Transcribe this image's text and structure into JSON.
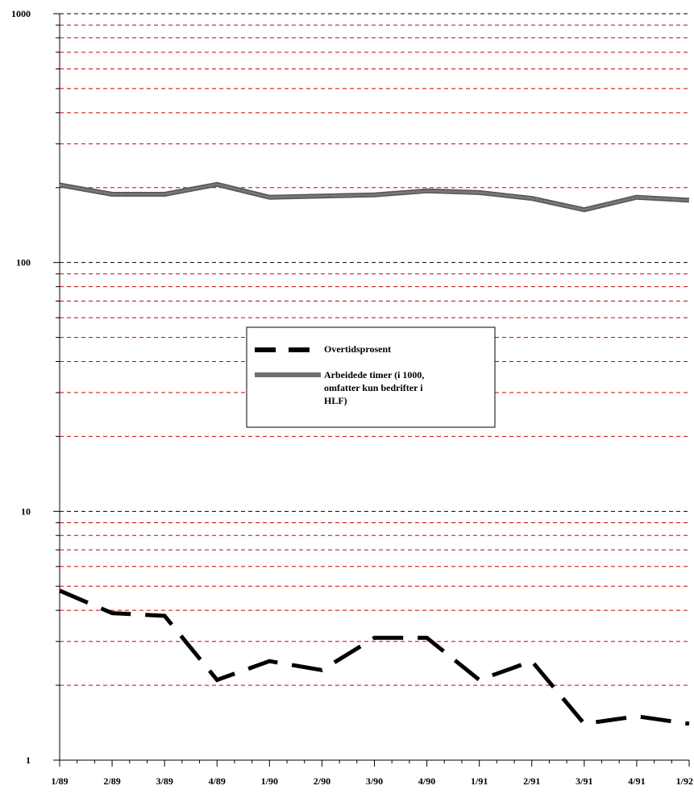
{
  "chart_data": {
    "type": "line",
    "yscale": "log",
    "ylim": [
      1,
      1000
    ],
    "grid": true,
    "legend_position": "center",
    "y_ticks": [
      {
        "value": 1,
        "label": "1"
      },
      {
        "value": 10,
        "label": "10"
      },
      {
        "value": 100,
        "label": "100"
      },
      {
        "value": 1000,
        "label": "1000"
      }
    ],
    "categories": [
      "1/89",
      "2/89",
      "3/89",
      "4/89",
      "1/90",
      "2/90",
      "3/90",
      "4/90",
      "1/91",
      "2/91",
      "3/91",
      "4/91",
      "1/92"
    ],
    "series": [
      {
        "name": "Overtidsprosent",
        "style": "dashed",
        "color": "#000000",
        "values": [
          4.8,
          3.9,
          3.8,
          2.1,
          2.5,
          2.3,
          3.1,
          3.1,
          2.1,
          2.5,
          1.4,
          1.5,
          1.4
        ]
      },
      {
        "name": "Arbeidede timer (i 1000, omfatter kun bedrifter i HLF)",
        "name_lines": [
          "Arbeidede timer (i 1000,",
          "omfatter kun bedrifter i",
          "HLF)"
        ],
        "style": "solid-thick",
        "color": "#666666",
        "values": [
          205,
          188,
          188,
          206,
          183,
          185,
          187,
          194,
          191,
          181,
          163,
          183,
          178
        ]
      }
    ],
    "colors": {
      "major_grid": "#000000",
      "minor_grid": "#cc0000",
      "axis": "#000000"
    }
  }
}
